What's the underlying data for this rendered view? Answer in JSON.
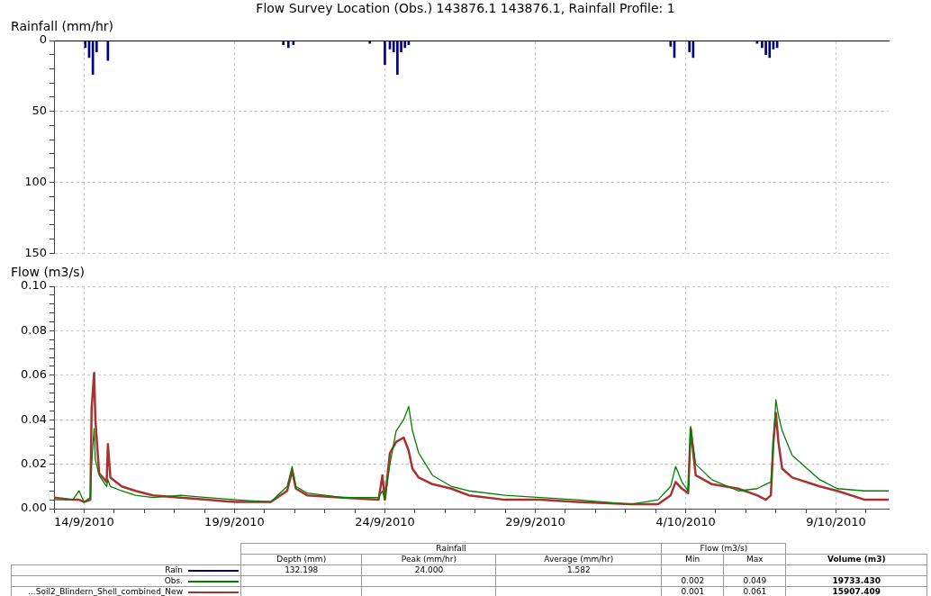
{
  "chart_data": [
    {
      "type": "bar",
      "title": "Flow Survey Location (Obs.) 143876.1 143876.1, Rainfall Profile: 1",
      "ylabel": "Rainfall (mm/hr)",
      "grid": true,
      "tick_labels": "y",
      "xlim": [
        "2010-09-13T00:00",
        "2010-10-10T18:00"
      ],
      "xticks": [
        {
          "value": "2010-09-14",
          "label": null
        },
        {
          "value": "2010-09-19",
          "label": null
        },
        {
          "value": "2010-09-24",
          "label": null
        },
        {
          "value": "2010-09-29",
          "label": null
        },
        {
          "value": "2010-10-04",
          "label": null
        },
        {
          "value": "2010-10-09",
          "label": null
        }
      ],
      "ylim": [
        150,
        0
      ],
      "yticks": [
        0,
        {
          "value": 10,
          "label": null
        },
        {
          "value": 20,
          "label": null
        },
        {
          "value": 30,
          "label": null
        },
        {
          "value": 40,
          "label": null
        },
        50,
        {
          "value": 60,
          "label": null
        },
        {
          "value": 70,
          "label": null
        },
        {
          "value": 80,
          "label": null
        },
        {
          "value": 90,
          "label": null
        },
        100,
        {
          "value": 110,
          "label": null
        },
        {
          "value": 120,
          "label": null
        },
        {
          "value": 130,
          "label": null
        },
        {
          "value": 140,
          "label": null
        },
        150
      ],
      "x": [
        "2010-09-14T01:00",
        "2010-09-14T04:00",
        "2010-09-14T07:00",
        "2010-09-14T10:00",
        "2010-09-14T19:00",
        "2010-09-20T15:00",
        "2010-09-20T19:00",
        "2010-09-20T23:00",
        "2010-09-23T12:00",
        "2010-09-24T00:00",
        "2010-09-24T04:00",
        "2010-09-24T07:00",
        "2010-09-24T10:00",
        "2010-09-24T13:00",
        "2010-09-24T16:00",
        "2010-09-24T19:00",
        "2010-10-03T12:00",
        "2010-10-03T15:00",
        "2010-10-04T03:00",
        "2010-10-04T06:00",
        "2010-10-06T09:00",
        "2010-10-06T13:00",
        "2010-10-06T16:00",
        "2010-10-06T19:00",
        "2010-10-06T22:00",
        "2010-10-07T01:00"
      ],
      "series": [
        {
          "color": "#00007f",
          "values": [
            5,
            12,
            24,
            8,
            14,
            3,
            5,
            3,
            2,
            17,
            6,
            8,
            24,
            8,
            5,
            3,
            4,
            12,
            8,
            12,
            2,
            5,
            10,
            12,
            6,
            5
          ]
        }
      ]
    },
    {
      "type": "line",
      "ylabel": "Flow (m3/s)",
      "grid": true,
      "xlim": [
        "2010-09-13T00:00",
        "2010-10-10T18:00"
      ],
      "xticks": [
        {
          "value": "2010-09-13",
          "label": null
        },
        {
          "value": "2010-09-14",
          "label": "14/9/2010"
        },
        {
          "value": "2010-09-15",
          "label": null
        },
        {
          "value": "2010-09-16",
          "label": null
        },
        {
          "value": "2010-09-17",
          "label": null
        },
        {
          "value": "2010-09-18",
          "label": null
        },
        {
          "value": "2010-09-19",
          "label": "19/9/2010"
        },
        {
          "value": "2010-09-20",
          "label": null
        },
        {
          "value": "2010-09-21",
          "label": null
        },
        {
          "value": "2010-09-22",
          "label": null
        },
        {
          "value": "2010-09-23",
          "label": null
        },
        {
          "value": "2010-09-24",
          "label": "24/9/2010"
        },
        {
          "value": "2010-09-25",
          "label": null
        },
        {
          "value": "2010-09-26",
          "label": null
        },
        {
          "value": "2010-09-27",
          "label": null
        },
        {
          "value": "2010-09-28",
          "label": null
        },
        {
          "value": "2010-09-29",
          "label": "29/9/2010"
        },
        {
          "value": "2010-09-30",
          "label": null
        },
        {
          "value": "2010-10-01",
          "label": null
        },
        {
          "value": "2010-10-02",
          "label": null
        },
        {
          "value": "2010-10-03",
          "label": null
        },
        {
          "value": "2010-10-04",
          "label": "4/10/2010"
        },
        {
          "value": "2010-10-05",
          "label": null
        },
        {
          "value": "2010-10-06",
          "label": null
        },
        {
          "value": "2010-10-07",
          "label": null
        },
        {
          "value": "2010-10-08",
          "label": null
        },
        {
          "value": "2010-10-09",
          "label": "9/10/2010"
        },
        {
          "value": "2010-10-10",
          "label": null
        }
      ],
      "ylim": [
        0,
        0.1
      ],
      "yticks": [
        {
          "value": 0,
          "label": "0.00"
        },
        {
          "value": 0.004,
          "label": null
        },
        {
          "value": 0.008,
          "label": null
        },
        {
          "value": 0.012,
          "label": null
        },
        {
          "value": 0.016,
          "label": null
        },
        {
          "value": 0.02,
          "label": "0.02"
        },
        {
          "value": 0.024,
          "label": null
        },
        {
          "value": 0.028,
          "label": null
        },
        {
          "value": 0.032,
          "label": null
        },
        {
          "value": 0.036,
          "label": null
        },
        {
          "value": 0.04,
          "label": "0.04"
        },
        {
          "value": 0.044,
          "label": null
        },
        {
          "value": 0.048,
          "label": null
        },
        {
          "value": 0.052,
          "label": null
        },
        {
          "value": 0.056,
          "label": null
        },
        {
          "value": 0.06,
          "label": "0.06"
        },
        {
          "value": 0.064,
          "label": null
        },
        {
          "value": 0.068,
          "label": null
        },
        {
          "value": 0.072,
          "label": null
        },
        {
          "value": 0.076,
          "label": null
        },
        {
          "value": 0.08,
          "label": "0.08"
        },
        {
          "value": 0.084,
          "label": null
        },
        {
          "value": 0.088,
          "label": null
        },
        {
          "value": 0.092,
          "label": null
        },
        {
          "value": 0.096,
          "label": null
        },
        {
          "value": 0.1,
          "label": "0.10"
        }
      ],
      "x": [
        "2010-09-13T00:00",
        "2010-09-13T15:00",
        "2010-09-13T20:00",
        "2010-09-14T00:00",
        "2010-09-14T05:00",
        "2010-09-14T06:00",
        "2010-09-14T08:00",
        "2010-09-14T09:00",
        "2010-09-14T12:00",
        "2010-09-14T18:00",
        "2010-09-14T19:00",
        "2010-09-14T21:00",
        "2010-09-15T06:00",
        "2010-09-15T17:00",
        "2010-09-16T07:00",
        "2010-09-17T05:00",
        "2010-09-18T02:00",
        "2010-09-19T01:00",
        "2010-09-20T05:00",
        "2010-09-20T18:00",
        "2010-09-20T22:00",
        "2010-09-21T01:00",
        "2010-09-21T10:00",
        "2010-09-22T14:00",
        "2010-09-23T19:00",
        "2010-09-23T22:00",
        "2010-09-24T00:00",
        "2010-09-24T04:00",
        "2010-09-24T09:00",
        "2010-09-24T15:00",
        "2010-09-24T19:00",
        "2010-09-24T22:00",
        "2010-09-25T03:00",
        "2010-09-25T14:00",
        "2010-09-26T05:00",
        "2010-09-26T19:00",
        "2010-09-28T00:00",
        "2010-09-29T04:00",
        "2010-09-30T09:00",
        "2010-10-02T04:00",
        "2010-10-03T02:00",
        "2010-10-03T12:00",
        "2010-10-03T16:00",
        "2010-10-03T21:00",
        "2010-10-04T02:00",
        "2010-10-04T04:00",
        "2010-10-04T08:00",
        "2010-10-04T21:00",
        "2010-10-05T18:00",
        "2010-10-06T09:00",
        "2010-10-06T16:00",
        "2010-10-06T20:00",
        "2010-10-06T22:00",
        "2010-10-07T00:00",
        "2010-10-07T02:00",
        "2010-10-07T05:00",
        "2010-10-07T13:00",
        "2010-10-08T11:00",
        "2010-10-09T01:00",
        "2010-10-09T23:00",
        "2010-10-10T18:00"
      ],
      "series": [
        {
          "color": "#008000",
          "values": [
            0.004,
            0.004,
            0.008,
            0.003,
            0.005,
            0.02,
            0.036,
            0.022,
            0.015,
            0.01,
            0.013,
            0.01,
            0.008,
            0.006,
            0.005,
            0.006,
            0.005,
            0.004,
            0.003,
            0.01,
            0.019,
            0.01,
            0.007,
            0.005,
            0.005,
            0.008,
            0.004,
            0.02,
            0.035,
            0.04,
            0.046,
            0.035,
            0.025,
            0.015,
            0.01,
            0.008,
            0.006,
            0.005,
            0.004,
            0.002,
            0.004,
            0.01,
            0.019,
            0.012,
            0.008,
            0.037,
            0.02,
            0.013,
            0.008,
            0.009,
            0.011,
            0.012,
            0.03,
            0.049,
            0.042,
            0.035,
            0.024,
            0.013,
            0.009,
            0.008,
            0.008
          ]
        },
        {
          "color": "#a83232",
          "values": [
            0.005,
            0.004,
            0.004,
            0.003,
            0.004,
            0.045,
            0.061,
            0.04,
            0.016,
            0.012,
            0.029,
            0.014,
            0.01,
            0.008,
            0.006,
            0.005,
            0.004,
            0.003,
            0.003,
            0.008,
            0.017,
            0.009,
            0.006,
            0.005,
            0.004,
            0.015,
            0.004,
            0.025,
            0.03,
            0.032,
            0.026,
            0.018,
            0.014,
            0.011,
            0.009,
            0.006,
            0.004,
            0.004,
            0.003,
            0.002,
            0.002,
            0.006,
            0.012,
            0.009,
            0.007,
            0.036,
            0.015,
            0.011,
            0.009,
            0.006,
            0.004,
            0.006,
            0.03,
            0.043,
            0.03,
            0.018,
            0.014,
            0.01,
            0.008,
            0.004,
            0.004
          ]
        }
      ]
    },
    {
      "type": "other",
      "annotations": [
        "Rainfall",
        "Flow (m3/s)"
      ],
      "categories": [
        "Depth (mm)",
        "Peak (mm/hr)",
        "Average (mm/hr)",
        "Min",
        "Max",
        "Volume (m3)"
      ],
      "series": [
        {
          "name": "Rain",
          "values": [
            132.198,
            24.0,
            1.582,
            null,
            null,
            null
          ],
          "value_labels": [
            "132.198",
            "24.000",
            "1.582",
            null,
            null,
            null
          ]
        },
        {
          "name": "Obs.",
          "values": [
            null,
            null,
            null,
            0.002,
            0.049,
            19733.43
          ],
          "value_labels": [
            null,
            null,
            null,
            "0.002",
            "0.049",
            "19733.430"
          ]
        },
        {
          "name": "...Soil2_Blindern_Shell_combined_New",
          "values": [
            null,
            null,
            null,
            0.001,
            0.061,
            15907.409
          ],
          "value_labels": [
            null,
            null,
            null,
            "0.001",
            "0.061",
            "15907.409"
          ]
        }
      ]
    }
  ]
}
